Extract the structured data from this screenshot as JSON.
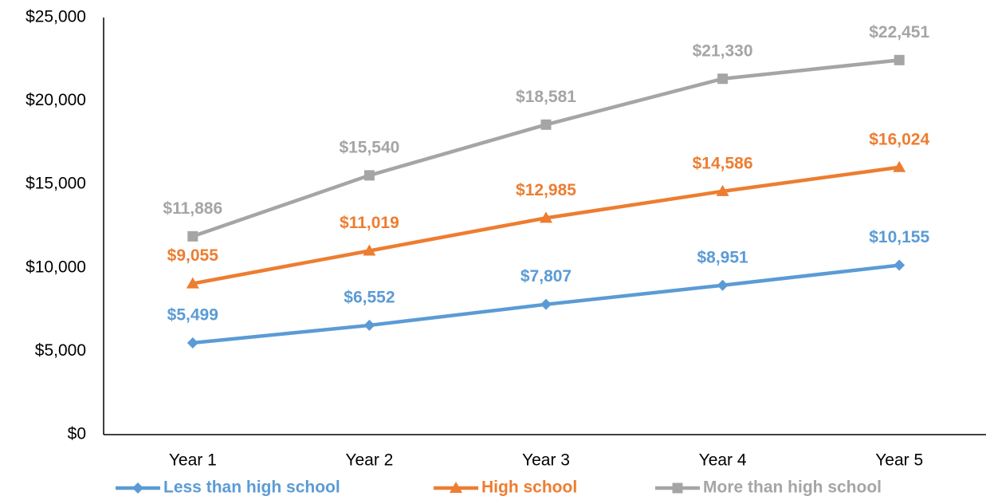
{
  "chart_data": {
    "type": "line",
    "categories": [
      "Year 1",
      "Year 2",
      "Year 3",
      "Year 4",
      "Year 5"
    ],
    "series": [
      {
        "name": "Less than high school",
        "color": "#5b9bd5",
        "marker": "diamond",
        "values": [
          5499,
          6552,
          7807,
          8951,
          10155
        ],
        "value_labels": [
          "$5,499",
          "$6,552",
          "$7,807",
          "$8,951",
          "$10,155"
        ]
      },
      {
        "name": "High school",
        "color": "#ed7d31",
        "marker": "triangle",
        "values": [
          9055,
          11019,
          12985,
          14586,
          16024
        ],
        "value_labels": [
          "$9,055",
          "$11,019",
          "$12,985",
          "$14,586",
          "$16,024"
        ]
      },
      {
        "name": "More than high school",
        "color": "#a5a5a5",
        "marker": "square",
        "values": [
          11886,
          15540,
          18581,
          21330,
          22451
        ],
        "value_labels": [
          "$11,886",
          "$15,540",
          "$18,581",
          "$21,330",
          "$22,451"
        ]
      }
    ],
    "ylim": [
      0,
      25000
    ],
    "yticks": [
      {
        "value": 0,
        "label": "$0"
      },
      {
        "value": 5000,
        "label": "$5,000"
      },
      {
        "value": 10000,
        "label": "$10,000"
      },
      {
        "value": 15000,
        "label": "$15,000"
      },
      {
        "value": 20000,
        "label": "$20,000"
      },
      {
        "value": 25000,
        "label": "$25,000"
      }
    ],
    "grid": false,
    "legend": "bottom"
  }
}
